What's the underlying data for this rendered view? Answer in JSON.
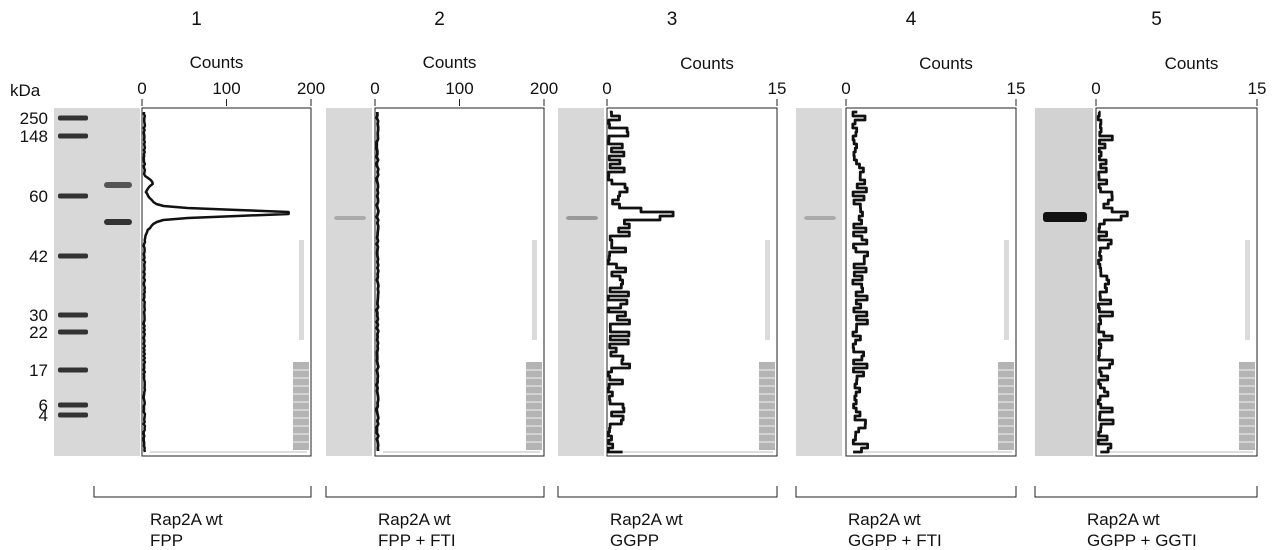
{
  "marker_unit": "kDa",
  "markers": [
    {
      "label": "250",
      "kda": 250
    },
    {
      "label": "148",
      "kda": 148
    },
    {
      "label": "60",
      "kda": 60
    },
    {
      "label": "42",
      "kda": 42
    },
    {
      "label": "30",
      "kda": 30
    },
    {
      "label": "22",
      "kda": 22
    },
    {
      "label": "17",
      "kda": 17
    },
    {
      "label": "6",
      "kda": 6
    },
    {
      "label": "4",
      "kda": 4
    }
  ],
  "panels": [
    {
      "number": "1",
      "axis_label": "Counts",
      "max": 200,
      "ticks": [
        "0",
        "100",
        "200"
      ],
      "tick_values": [
        0,
        100,
        200
      ],
      "caption": [
        "Rap2A wt",
        "FPP"
      ],
      "peak_counts": 160,
      "has_marker_lane": true
    },
    {
      "number": "2",
      "axis_label": "Counts",
      "max": 200,
      "ticks": [
        "0",
        "100",
        "200"
      ],
      "tick_values": [
        0,
        100,
        200
      ],
      "caption": [
        "Rap2A wt",
        "FPP + FTI"
      ],
      "peak_counts": 3,
      "has_marker_lane": false
    },
    {
      "number": "3",
      "axis_label": "Counts",
      "max": 15,
      "ticks": [
        "0",
        "15"
      ],
      "tick_values": [
        0,
        15
      ],
      "caption": [
        "Rap2A wt",
        "GGPP"
      ],
      "peak_counts": 6,
      "has_marker_lane": false
    },
    {
      "number": "4",
      "axis_label": "Counts",
      "max": 15,
      "ticks": [
        "0",
        "15"
      ],
      "tick_values": [
        0,
        15
      ],
      "caption": [
        "Rap2A wt",
        "GGPP + FTI"
      ],
      "peak_counts": 1.5,
      "has_marker_lane": false
    },
    {
      "number": "5",
      "axis_label": "Counts",
      "max": 15,
      "ticks": [
        "0",
        "15"
      ],
      "tick_values": [
        0,
        15
      ],
      "caption": [
        "Rap2A wt",
        "GGPP + GGTI"
      ],
      "peak_counts": 3,
      "has_marker_lane": false
    }
  ]
}
